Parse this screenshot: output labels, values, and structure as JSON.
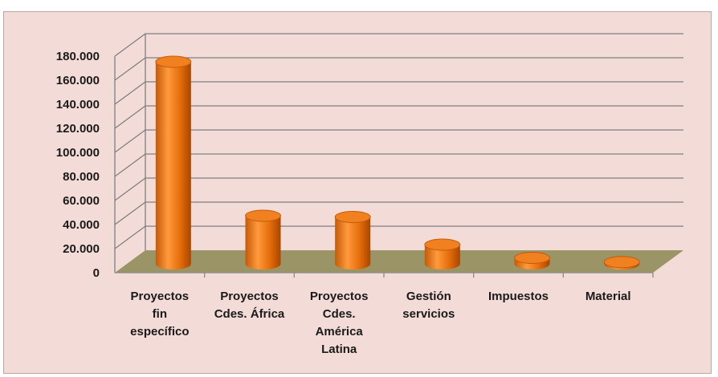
{
  "chart_data": {
    "type": "bar",
    "title": "",
    "xlabel": "",
    "ylabel": "",
    "categories": [
      [
        "Proyectos",
        "fin",
        "específico"
      ],
      [
        "Proyectos",
        "Cdes. África"
      ],
      [
        "Proyectos",
        "Cdes.",
        "América",
        "Latina"
      ],
      [
        "Gestión",
        "servicios"
      ],
      [
        "Impuestos"
      ],
      [
        "Material"
      ]
    ],
    "values": [
      168000,
      40000,
      39000,
      16000,
      5000,
      1500
    ],
    "ylim": [
      0,
      180000
    ],
    "yticks": [
      "0",
      "20.000",
      "40.000",
      "60.000",
      "80.000",
      "100.000",
      "120.000",
      "140.000",
      "160.000",
      "180.000"
    ],
    "grid": true,
    "legend": "none",
    "colors": {
      "bar_side": "#e46c0a",
      "bar_dark": "#b84e00",
      "bar_light": "#ff9a3c",
      "bar_top": "#f08020",
      "floor": "#9a9466",
      "background": "#f3dcd8",
      "gridline": "#7f7f7f"
    }
  }
}
